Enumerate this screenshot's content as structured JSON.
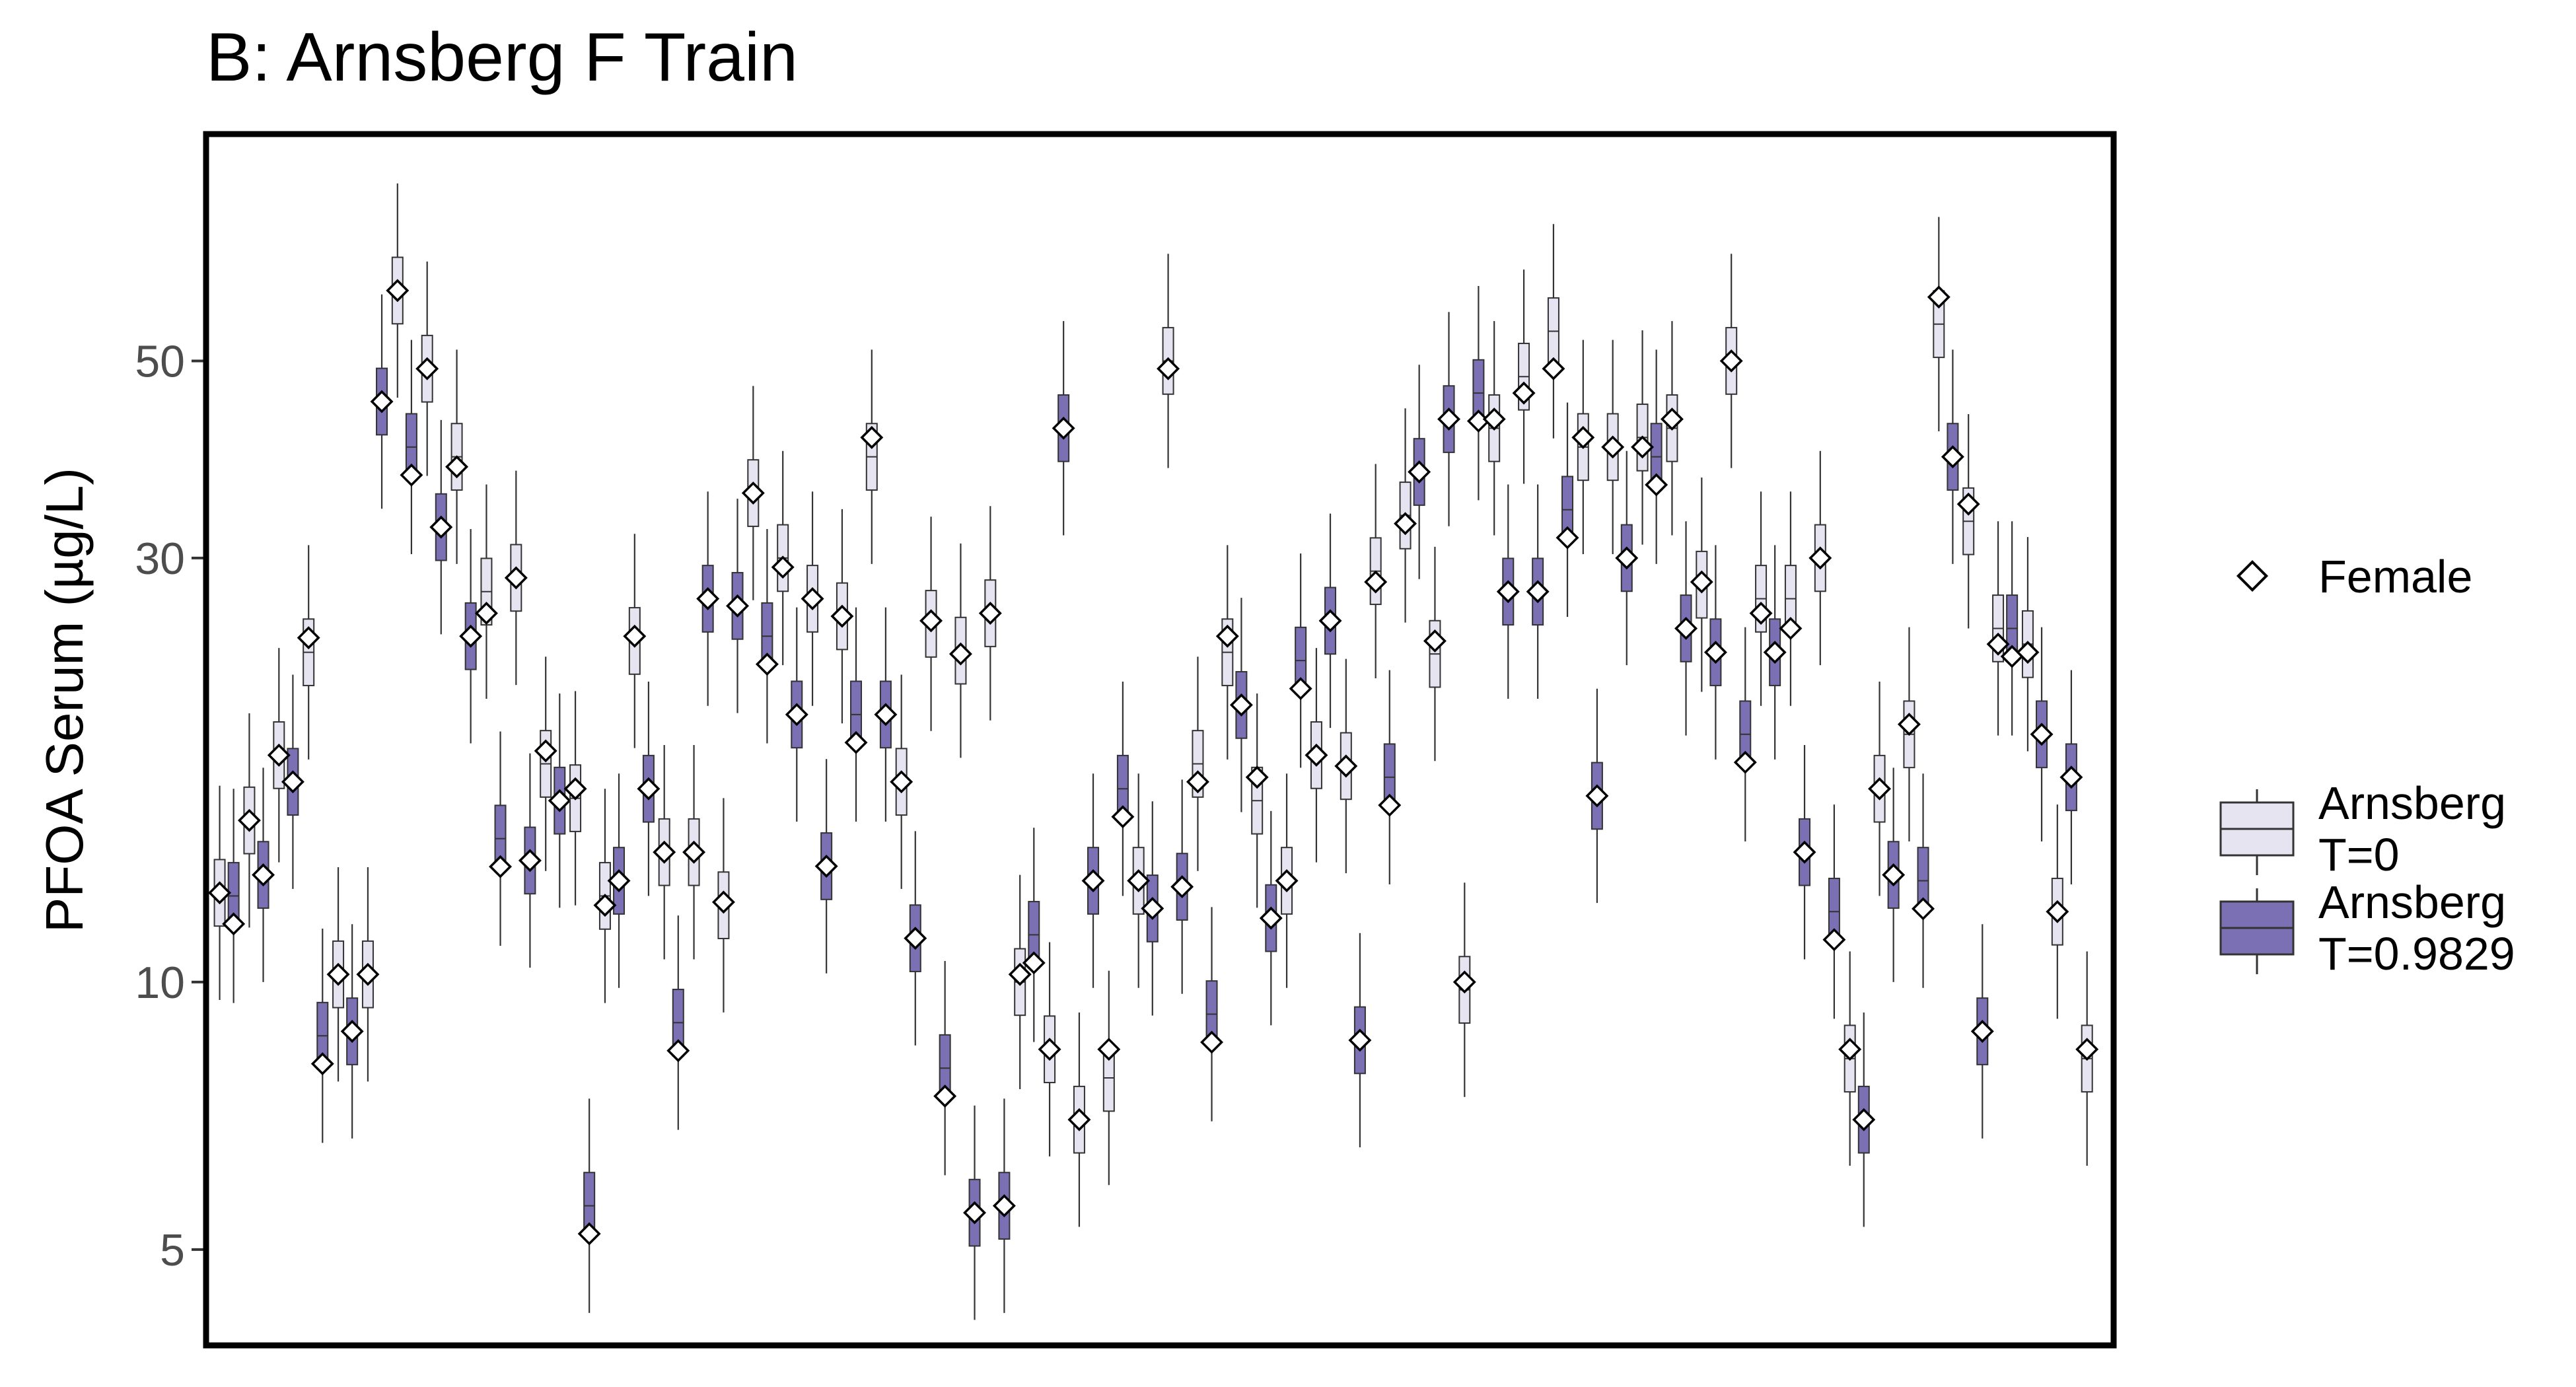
{
  "chart_data": {
    "type": "boxplot",
    "title": "B: Arnsberg F Train",
    "xlabel": "",
    "ylabel": "PFOA Serum (µg/L)",
    "y_scale": "log",
    "ylim": [
      3.9,
      90
    ],
    "yticks": [
      5,
      10,
      30,
      50
    ],
    "grid": false,
    "legend": {
      "placement": "right",
      "marker_entry": "Female",
      "box_entries": [
        "Arnsberg\nT=0",
        "Arnsberg\nT=0.9829"
      ]
    },
    "colors": {
      "t0_fill": "#e6e4f0",
      "t1_fill": "#7b70b3",
      "box_stroke": "#333333",
      "marker_fill": "#ffffff",
      "marker_stroke": "#000000",
      "frame": "#000000"
    },
    "series": [
      {
        "name": "Arnsberg T=0",
        "medians": [
          12.6,
          15.2,
          18.0,
          23.5,
          10.2,
          10.2,
          60.0,
          49.0,
          39.0,
          27.5,
          28.5,
          17.6,
          16.1,
          12.5,
          24.2,
          14.0,
          14.0,
          12.2,
          35.5,
          30.0,
          27.0,
          25.8,
          39.0,
          16.8,
          25.3,
          23.6,
          26.0,
          10.0,
          8.4,
          7.0,
          7.8,
          13.0,
          50.0,
          17.6,
          23.5,
          16.0,
          13.0,
          18.0,
          17.5,
          29.0,
          33.5,
          23.4,
          9.8,
          42.0,
          48.0,
          54.0,
          40.0,
          40.0,
          41.0,
          42.0,
          28.0,
          50.0,
          27.0,
          27.0,
          30.0,
          8.2,
          16.5,
          19.0,
          55.0,
          33.0,
          25.0,
          24.0,
          12.0,
          8.2
        ],
        "markers": [
          12.6,
          15.2,
          18.0,
          24.4,
          10.2,
          10.2,
          60.0,
          49.0,
          38.0,
          26.0,
          28.5,
          18.2,
          16.5,
          12.2,
          24.5,
          14.0,
          14.0,
          12.3,
          35.5,
          29.3,
          27.0,
          25.8,
          41.0,
          16.8,
          25.5,
          23.4,
          26.0,
          10.2,
          8.4,
          7.0,
          8.4,
          13.0,
          49.0,
          16.8,
          24.5,
          17.0,
          13.0,
          18.0,
          17.5,
          28.2,
          32.8,
          24.2,
          10.0,
          43.0,
          46.0,
          49.0,
          41.0,
          40.0,
          40.0,
          43.0,
          28.2,
          50.0,
          26.0,
          25.0,
          30.0,
          8.4,
          16.5,
          19.5,
          59.0,
          34.5,
          24.0,
          23.5,
          12.0,
          8.4
        ]
      },
      {
        "name": "Arnsberg T=0.9829",
        "medians": [
          12.5,
          13.2,
          16.8,
          8.7,
          8.8,
          45.0,
          40.0,
          32.5,
          24.5,
          14.5,
          13.7,
          16.0,
          5.6,
          13.0,
          16.5,
          9.0,
          27.0,
          26.5,
          24.5,
          20.0,
          13.5,
          20.0,
          20.0,
          11.2,
          8.0,
          5.5,
          5.6,
          11.3,
          42.0,
          13.0,
          16.5,
          12.1,
          12.8,
          9.2,
          20.5,
          11.8,
          23.0,
          25.5,
          8.6,
          17.0,
          37.5,
          43.0,
          46.0,
          27.5,
          27.5,
          34.0,
          16.2,
          30.0,
          39.0,
          25.0,
          23.5,
          19.0,
          23.5,
          14.0,
          12.0,
          7.0,
          13.2,
          13.0,
          39.0,
          8.8,
          25.0,
          19.0,
          17.0
        ]
      }
    ]
  },
  "legend_text": {
    "marker_label": "Female",
    "box1_line1": "Arnsberg",
    "box1_line2": "T=0",
    "box2_line1": "Arnsberg",
    "box2_line2": "T=0.9829"
  }
}
